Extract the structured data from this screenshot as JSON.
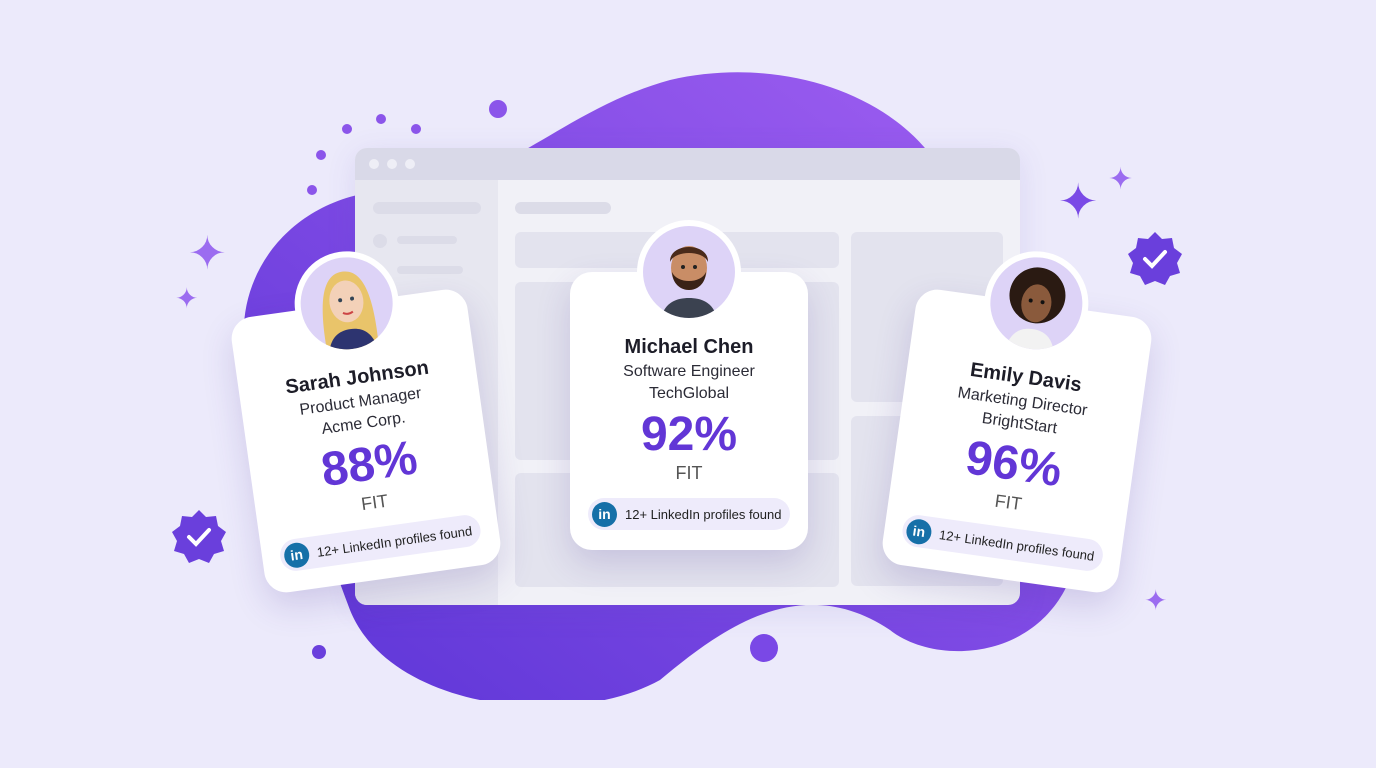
{
  "colors": {
    "accent": "#6236d6",
    "background": "#eceafb",
    "linkedin": "#1670a8"
  },
  "candidates": [
    {
      "name": "Sarah Johnson",
      "role": "Product Manager",
      "company": "Acme Corp.",
      "fit_percent": "88%",
      "fit_label": "FIT",
      "linkedin_icon": "in",
      "linkedin_text": "12+ LinkedIn profiles found"
    },
    {
      "name": "Michael Chen",
      "role": "Software Engineer",
      "company": "TechGlobal",
      "fit_percent": "92%",
      "fit_label": "FIT",
      "linkedin_icon": "in",
      "linkedin_text": "12+ LinkedIn profiles found"
    },
    {
      "name": "Emily Davis",
      "role": "Marketing Director",
      "company": "BrightStart",
      "fit_percent": "96%",
      "fit_label": "FIT",
      "linkedin_icon": "in",
      "linkedin_text": "12+ LinkedIn profiles found"
    }
  ],
  "decorations": {
    "badge_icon": "verified-check-badge",
    "sparkle_icon": "four-point-sparkle"
  }
}
